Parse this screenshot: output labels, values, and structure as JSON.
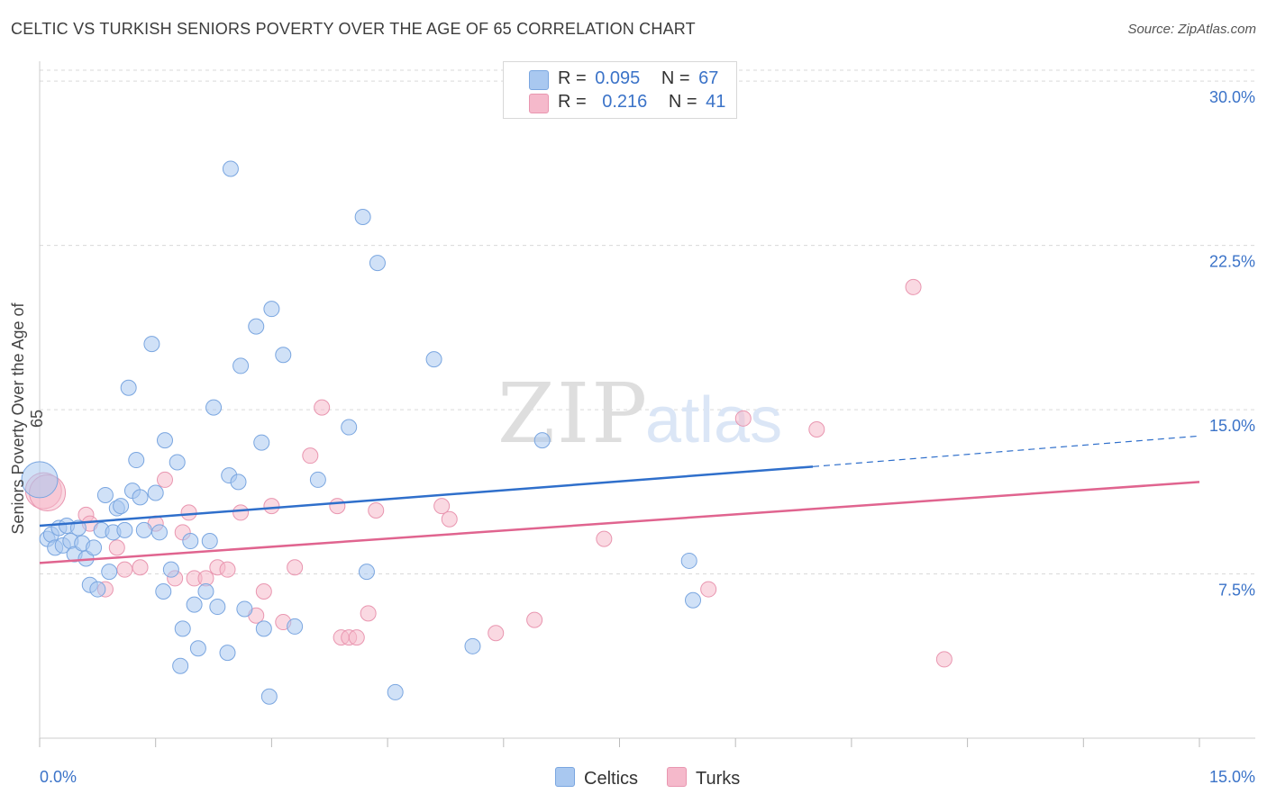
{
  "title": "CELTIC VS TURKISH SENIORS POVERTY OVER THE AGE OF 65 CORRELATION CHART",
  "source": "Source: ZipAtlas.com",
  "watermark": {
    "zip": "ZIP",
    "atlas": "atlas"
  },
  "colors": {
    "celtics_fill": "#a9c8f0",
    "celtics_stroke": "#7aa6e0",
    "celtics_line": "#2f6fcb",
    "turks_fill": "#f5b9cb",
    "turks_stroke": "#e996b0",
    "turks_line": "#e0648f",
    "axis_label": "#3b73c8",
    "grid": "#d9d9d9"
  },
  "legend": {
    "rows": [
      {
        "r_label": "R =",
        "r_value": "0.095",
        "n_label": "N =",
        "n_value": "67"
      },
      {
        "r_label": "R =",
        "r_value": "0.216",
        "n_label": "N =",
        "n_value": "41"
      }
    ]
  },
  "bottom_legend": {
    "celtics": "Celtics",
    "turks": "Turks"
  },
  "chart_data": {
    "type": "scatter",
    "title": "CELTIC VS TURKISH SENIORS POVERTY OVER THE AGE OF 65 CORRELATION CHART",
    "xlabel": "",
    "ylabel": "Seniors Poverty Over the Age of 65",
    "xlim": [
      0,
      15
    ],
    "ylim": [
      0,
      30.5
    ],
    "x_tick_labels": [
      "0.0%",
      "15.0%"
    ],
    "y_tick_labels": [
      "7.5%",
      "15.0%",
      "22.5%",
      "30.0%"
    ],
    "y_ticks": [
      7.5,
      15.0,
      22.5,
      30.0
    ],
    "x_minor_ticks": [
      0,
      1.5,
      3,
      4.5,
      6,
      7.5,
      9,
      10.5,
      12,
      13.5,
      15
    ],
    "grid": "horizontal-dashed",
    "legend_placement": "top-center",
    "series": [
      {
        "name": "Celtics",
        "r": 0.095,
        "n": 67,
        "trend": {
          "x0": 0,
          "y0": 9.7,
          "x1": 10.0,
          "y1": 12.4,
          "dashed_to_x": 15,
          "dashed_to_y": 13.8
        },
        "points": [
          [
            0.0,
            11.8
          ],
          [
            0.1,
            9.1
          ],
          [
            0.15,
            9.3
          ],
          [
            0.2,
            8.7
          ],
          [
            0.25,
            9.6
          ],
          [
            0.3,
            8.8
          ],
          [
            0.35,
            9.7
          ],
          [
            0.4,
            9.0
          ],
          [
            0.45,
            8.4
          ],
          [
            0.5,
            9.6
          ],
          [
            0.55,
            8.9
          ],
          [
            0.6,
            8.2
          ],
          [
            0.65,
            7.0
          ],
          [
            0.7,
            8.7
          ],
          [
            0.75,
            6.8
          ],
          [
            0.8,
            9.5
          ],
          [
            0.85,
            11.1
          ],
          [
            0.9,
            7.6
          ],
          [
            0.95,
            9.4
          ],
          [
            1.0,
            10.5
          ],
          [
            1.05,
            10.6
          ],
          [
            1.1,
            9.5
          ],
          [
            1.15,
            16.0
          ],
          [
            1.2,
            11.3
          ],
          [
            1.25,
            12.7
          ],
          [
            1.3,
            11.0
          ],
          [
            1.35,
            9.5
          ],
          [
            1.45,
            18.0
          ],
          [
            1.5,
            11.2
          ],
          [
            1.55,
            9.4
          ],
          [
            1.6,
            6.7
          ],
          [
            1.62,
            13.6
          ],
          [
            1.7,
            7.7
          ],
          [
            1.78,
            12.6
          ],
          [
            1.82,
            3.3
          ],
          [
            1.85,
            5.0
          ],
          [
            1.95,
            9.0
          ],
          [
            2.0,
            6.1
          ],
          [
            2.05,
            4.1
          ],
          [
            2.15,
            6.7
          ],
          [
            2.2,
            9.0
          ],
          [
            2.25,
            15.1
          ],
          [
            2.3,
            6.0
          ],
          [
            2.43,
            3.9
          ],
          [
            2.45,
            12.0
          ],
          [
            2.47,
            26.0
          ],
          [
            2.57,
            11.7
          ],
          [
            2.6,
            17.0
          ],
          [
            2.65,
            5.9
          ],
          [
            2.8,
            18.8
          ],
          [
            2.87,
            13.5
          ],
          [
            2.9,
            5.0
          ],
          [
            2.97,
            1.9
          ],
          [
            3.0,
            19.6
          ],
          [
            3.15,
            17.5
          ],
          [
            3.3,
            5.1
          ],
          [
            3.6,
            11.8
          ],
          [
            4.0,
            14.2
          ],
          [
            4.18,
            23.8
          ],
          [
            4.23,
            7.6
          ],
          [
            4.37,
            21.7
          ],
          [
            4.6,
            2.1
          ],
          [
            5.1,
            17.3
          ],
          [
            5.6,
            4.2
          ],
          [
            6.5,
            13.6
          ],
          [
            8.4,
            8.1
          ],
          [
            8.45,
            6.3
          ]
        ]
      },
      {
        "name": "Turks",
        "r": 0.216,
        "n": 41,
        "trend": {
          "x0": 0,
          "y0": 8.0,
          "x1": 15,
          "y1": 11.7
        },
        "points": [
          [
            0.05,
            11.3
          ],
          [
            0.1,
            11.2
          ],
          [
            0.6,
            10.2
          ],
          [
            0.65,
            9.8
          ],
          [
            0.85,
            6.8
          ],
          [
            1.0,
            8.7
          ],
          [
            1.1,
            7.7
          ],
          [
            1.3,
            7.8
          ],
          [
            1.5,
            9.8
          ],
          [
            1.62,
            11.8
          ],
          [
            1.75,
            7.3
          ],
          [
            1.85,
            9.4
          ],
          [
            1.93,
            10.3
          ],
          [
            2.0,
            7.3
          ],
          [
            2.15,
            7.3
          ],
          [
            2.3,
            7.8
          ],
          [
            2.43,
            7.7
          ],
          [
            2.6,
            10.3
          ],
          [
            2.8,
            5.6
          ],
          [
            2.9,
            6.7
          ],
          [
            3.0,
            10.6
          ],
          [
            3.15,
            5.3
          ],
          [
            3.3,
            7.8
          ],
          [
            3.5,
            12.9
          ],
          [
            3.65,
            15.1
          ],
          [
            3.85,
            10.6
          ],
          [
            3.9,
            4.6
          ],
          [
            4.0,
            4.6
          ],
          [
            4.1,
            4.6
          ],
          [
            4.25,
            5.7
          ],
          [
            4.35,
            10.4
          ],
          [
            5.2,
            10.6
          ],
          [
            5.3,
            10.0
          ],
          [
            5.9,
            4.8
          ],
          [
            6.4,
            5.4
          ],
          [
            7.3,
            9.1
          ],
          [
            8.65,
            6.8
          ],
          [
            9.1,
            14.6
          ],
          [
            10.05,
            14.1
          ],
          [
            11.3,
            20.6
          ],
          [
            11.7,
            3.6
          ]
        ]
      }
    ]
  }
}
